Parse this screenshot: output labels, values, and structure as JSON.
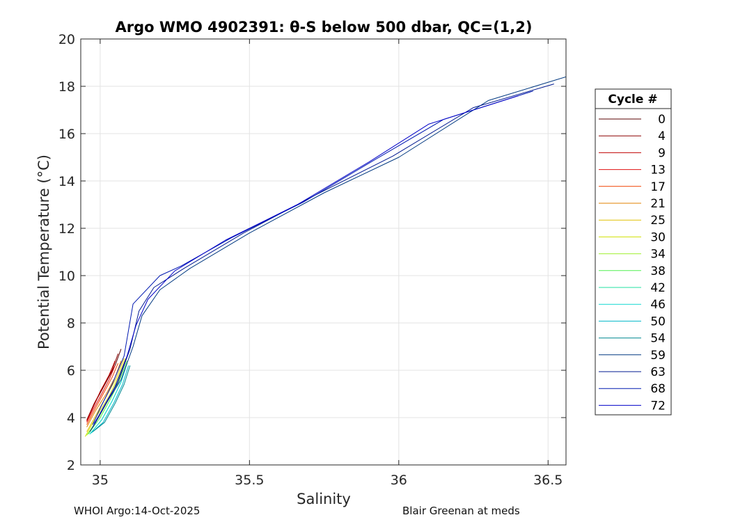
{
  "chart_data": {
    "type": "line",
    "title": "Argo WMO 4902391: θ-S below 500 dbar,  QC=(1,2)",
    "xlabel": "Salinity",
    "ylabel": "Potential Temperature (°C)",
    "xlim": [
      34.935,
      36.56
    ],
    "ylim": [
      2,
      20
    ],
    "xticks": [
      "35",
      "35.5",
      "36",
      "36.5"
    ],
    "yticks": [
      "2",
      "4",
      "6",
      "8",
      "10",
      "12",
      "14",
      "16",
      "18",
      "20"
    ],
    "grid": true,
    "legend": {
      "title": "Cycle #",
      "placement": "right",
      "entries": [
        {
          "label": "0",
          "color": "#5a0000"
        },
        {
          "label": "4",
          "color": "#8c0000"
        },
        {
          "label": "9",
          "color": "#c00000"
        },
        {
          "label": "13",
          "color": "#e01010"
        },
        {
          "label": "17",
          "color": "#f04000"
        },
        {
          "label": "21",
          "color": "#e08000"
        },
        {
          "label": "25",
          "color": "#e0c000"
        },
        {
          "label": "30",
          "color": "#d0e000"
        },
        {
          "label": "34",
          "color": "#a0f030"
        },
        {
          "label": "38",
          "color": "#50f050"
        },
        {
          "label": "42",
          "color": "#20e0a0"
        },
        {
          "label": "46",
          "color": "#10d8d0"
        },
        {
          "label": "50",
          "color": "#00b8c8"
        },
        {
          "label": "54",
          "color": "#008890"
        },
        {
          "label": "59",
          "color": "#003880"
        },
        {
          "label": "63",
          "color": "#001890"
        },
        {
          "label": "68",
          "color": "#0018b0"
        },
        {
          "label": "72",
          "color": "#0000c8"
        }
      ]
    },
    "series": [
      {
        "cycle": "0",
        "points": [
          [
            35.07,
            6.9
          ],
          [
            35.05,
            6.2
          ],
          [
            35.02,
            5.5
          ],
          [
            34.99,
            4.8
          ],
          [
            34.96,
            4.0
          ]
        ]
      },
      {
        "cycle": "4",
        "points": [
          [
            35.06,
            6.7
          ],
          [
            35.04,
            6.0
          ],
          [
            35.01,
            5.3
          ],
          [
            34.98,
            4.6
          ],
          [
            34.955,
            3.9
          ]
        ]
      },
      {
        "cycle": "9",
        "points": [
          [
            35.05,
            6.4
          ],
          [
            35.03,
            5.8
          ],
          [
            35.0,
            5.1
          ],
          [
            34.975,
            4.4
          ],
          [
            34.955,
            3.85
          ]
        ]
      },
      {
        "cycle": "13",
        "points": [
          [
            35.05,
            6.2
          ],
          [
            35.03,
            5.6
          ],
          [
            35.005,
            5.0
          ],
          [
            34.975,
            4.3
          ],
          [
            34.955,
            3.8
          ]
        ]
      },
      {
        "cycle": "17",
        "points": [
          [
            35.06,
            6.3
          ],
          [
            35.04,
            5.7
          ],
          [
            35.01,
            5.0
          ],
          [
            34.98,
            4.3
          ],
          [
            34.955,
            3.7
          ]
        ]
      },
      {
        "cycle": "21",
        "points": [
          [
            35.07,
            6.4
          ],
          [
            35.05,
            5.7
          ],
          [
            35.02,
            5.0
          ],
          [
            34.985,
            4.3
          ],
          [
            34.955,
            3.6
          ]
        ]
      },
      {
        "cycle": "25",
        "points": [
          [
            35.08,
            6.5
          ],
          [
            35.055,
            5.7
          ],
          [
            35.025,
            5.0
          ],
          [
            34.99,
            4.2
          ],
          [
            34.955,
            3.4
          ]
        ]
      },
      {
        "cycle": "30",
        "points": [
          [
            35.085,
            6.5
          ],
          [
            35.06,
            5.7
          ],
          [
            35.03,
            4.9
          ],
          [
            34.99,
            4.1
          ],
          [
            34.95,
            3.2
          ]
        ]
      },
      {
        "cycle": "34",
        "points": [
          [
            35.085,
            6.4
          ],
          [
            35.06,
            5.6
          ],
          [
            35.03,
            4.8
          ],
          [
            34.995,
            4.0
          ],
          [
            34.955,
            3.25
          ]
        ]
      },
      {
        "cycle": "38",
        "points": [
          [
            35.09,
            6.4
          ],
          [
            35.065,
            5.6
          ],
          [
            35.035,
            4.8
          ],
          [
            35.0,
            4.0
          ],
          [
            34.96,
            3.3
          ]
        ]
      },
      {
        "cycle": "42",
        "points": [
          [
            35.09,
            6.3
          ],
          [
            35.07,
            5.5
          ],
          [
            35.04,
            4.7
          ],
          [
            35.005,
            3.9
          ],
          [
            34.965,
            3.3
          ]
        ]
      },
      {
        "cycle": "46",
        "points": [
          [
            35.09,
            6.3
          ],
          [
            35.07,
            5.5
          ],
          [
            35.04,
            4.7
          ],
          [
            35.005,
            3.9
          ],
          [
            34.965,
            3.3
          ]
        ]
      },
      {
        "cycle": "50",
        "points": [
          [
            35.095,
            6.2
          ],
          [
            35.075,
            5.4
          ],
          [
            35.045,
            4.6
          ],
          [
            35.01,
            3.8
          ],
          [
            34.97,
            3.35
          ]
        ]
      },
      {
        "cycle": "54",
        "points": [
          [
            35.1,
            6.2
          ],
          [
            35.08,
            5.4
          ],
          [
            35.05,
            4.6
          ],
          [
            35.015,
            3.8
          ],
          [
            34.975,
            3.4
          ]
        ]
      },
      {
        "cycle": "59",
        "points": [
          [
            36.56,
            18.4
          ],
          [
            36.3,
            17.4
          ],
          [
            36.0,
            15.0
          ],
          [
            35.75,
            13.5
          ],
          [
            35.5,
            11.8
          ],
          [
            35.3,
            10.3
          ],
          [
            35.2,
            9.4
          ],
          [
            35.14,
            8.3
          ],
          [
            35.11,
            7.0
          ],
          [
            35.07,
            5.6
          ],
          [
            35.02,
            4.6
          ],
          [
            34.985,
            3.8
          ],
          [
            34.965,
            3.4
          ]
        ]
      },
      {
        "cycle": "63",
        "points": [
          [
            36.52,
            18.1
          ],
          [
            36.25,
            17.1
          ],
          [
            35.98,
            15.05
          ],
          [
            35.72,
            13.4
          ],
          [
            35.48,
            11.8
          ],
          [
            35.28,
            10.3
          ],
          [
            35.18,
            9.5
          ],
          [
            35.13,
            8.5
          ],
          [
            35.1,
            6.9
          ],
          [
            35.06,
            5.5
          ],
          [
            35.015,
            4.5
          ],
          [
            34.98,
            3.75
          ]
        ]
      },
      {
        "cycle": "68",
        "points": [
          [
            36.45,
            17.8
          ],
          [
            36.15,
            16.6
          ],
          [
            35.92,
            14.9
          ],
          [
            35.68,
            13.1
          ],
          [
            35.44,
            11.6
          ],
          [
            35.27,
            10.4
          ],
          [
            35.2,
            10.0
          ],
          [
            35.11,
            8.8
          ],
          [
            35.08,
            6.6
          ],
          [
            35.04,
            5.4
          ],
          [
            35.0,
            4.4
          ],
          [
            34.975,
            3.7
          ]
        ]
      },
      {
        "cycle": "72",
        "points": [
          [
            36.4,
            17.6
          ],
          [
            36.1,
            16.4
          ],
          [
            35.9,
            14.8
          ],
          [
            35.66,
            13.0
          ],
          [
            35.42,
            11.5
          ],
          [
            35.25,
            10.2
          ],
          [
            35.16,
            9.0
          ],
          [
            35.12,
            7.9
          ],
          [
            35.09,
            6.6
          ],
          [
            35.05,
            5.3
          ],
          [
            35.005,
            4.3
          ],
          [
            34.975,
            3.6
          ]
        ]
      }
    ]
  },
  "footer": {
    "left": "WHOI Argo:14-Oct-2025",
    "right": "Blair Greenan at meds"
  }
}
